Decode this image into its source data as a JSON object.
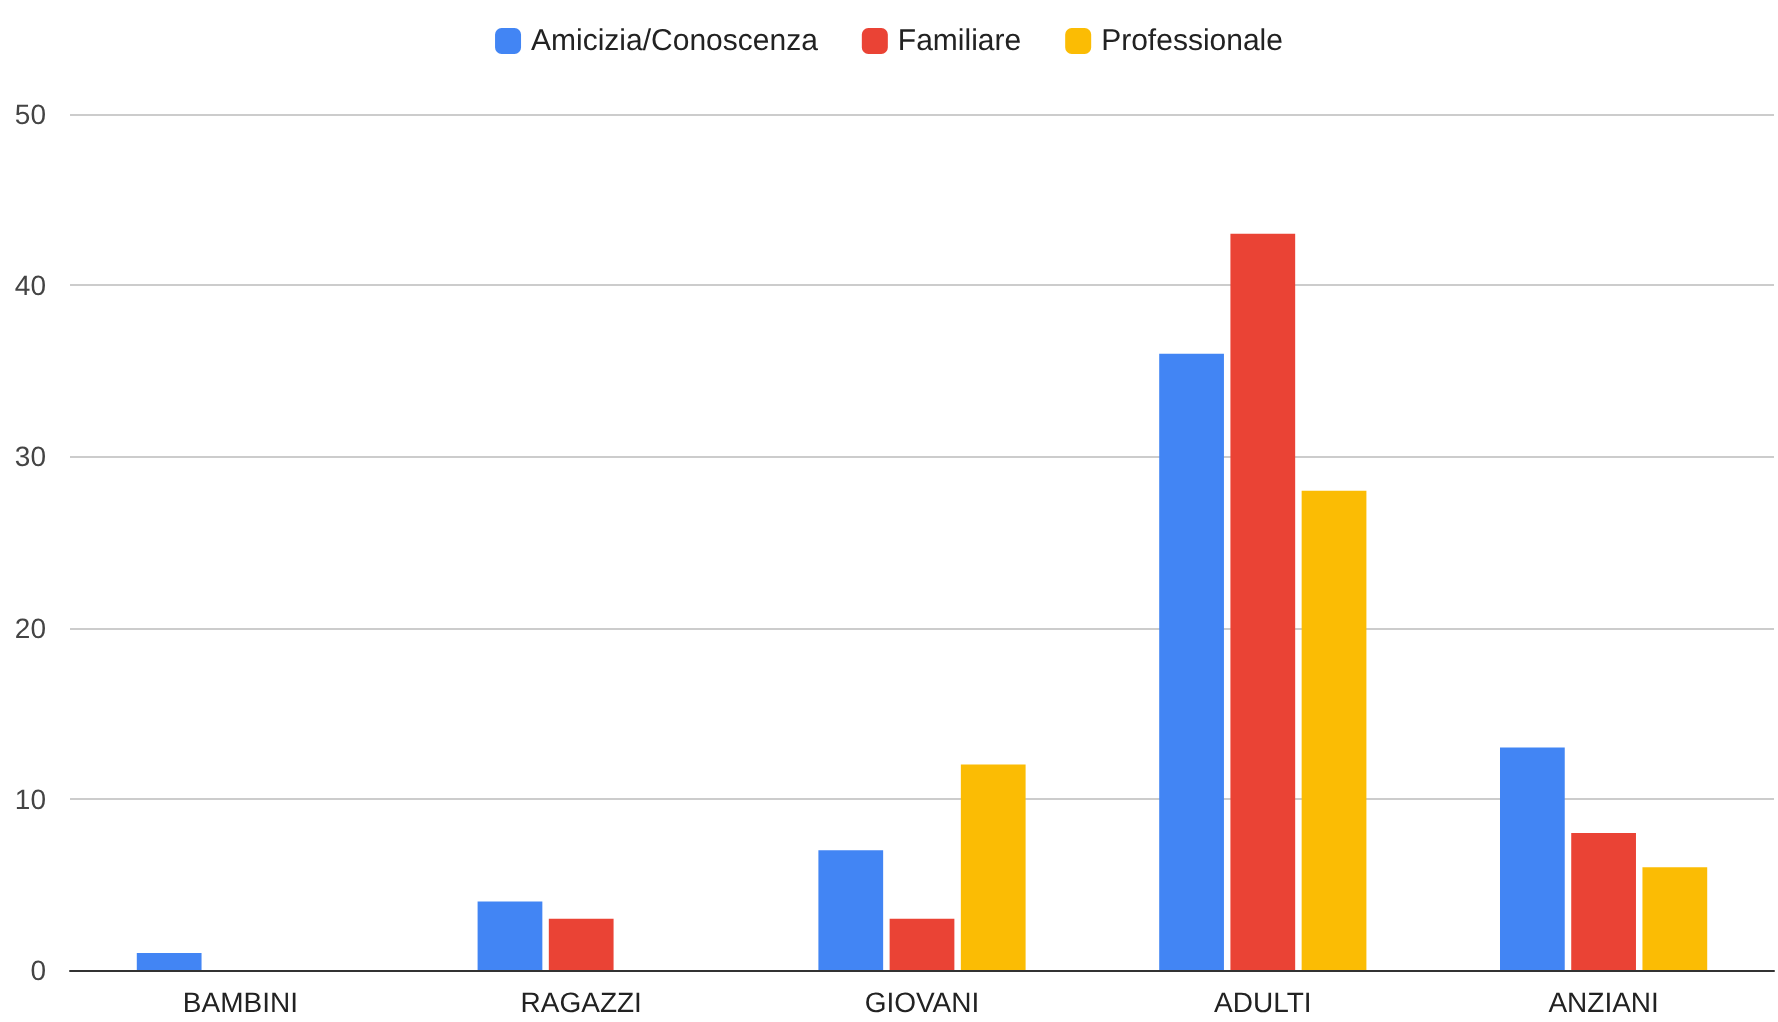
{
  "chart_data": {
    "type": "bar",
    "categories": [
      "BAMBINI",
      "RAGAZZI",
      "GIOVANI",
      "ADULTI",
      "ANZIANI"
    ],
    "series": [
      {
        "name": "Amicizia/Conoscenza",
        "color": "#4285f4",
        "values": [
          1,
          4,
          7,
          36,
          13
        ]
      },
      {
        "name": "Familiare",
        "color": "#ea4335",
        "values": [
          0,
          3,
          3,
          43,
          8
        ]
      },
      {
        "name": "Professionale",
        "color": "#fbbc04",
        "values": [
          0,
          0,
          12,
          28,
          6
        ]
      }
    ],
    "ylim": [
      0,
      50
    ],
    "yticks": [
      0,
      10,
      20,
      30,
      40,
      50
    ],
    "grid": "y",
    "legend": "top"
  }
}
